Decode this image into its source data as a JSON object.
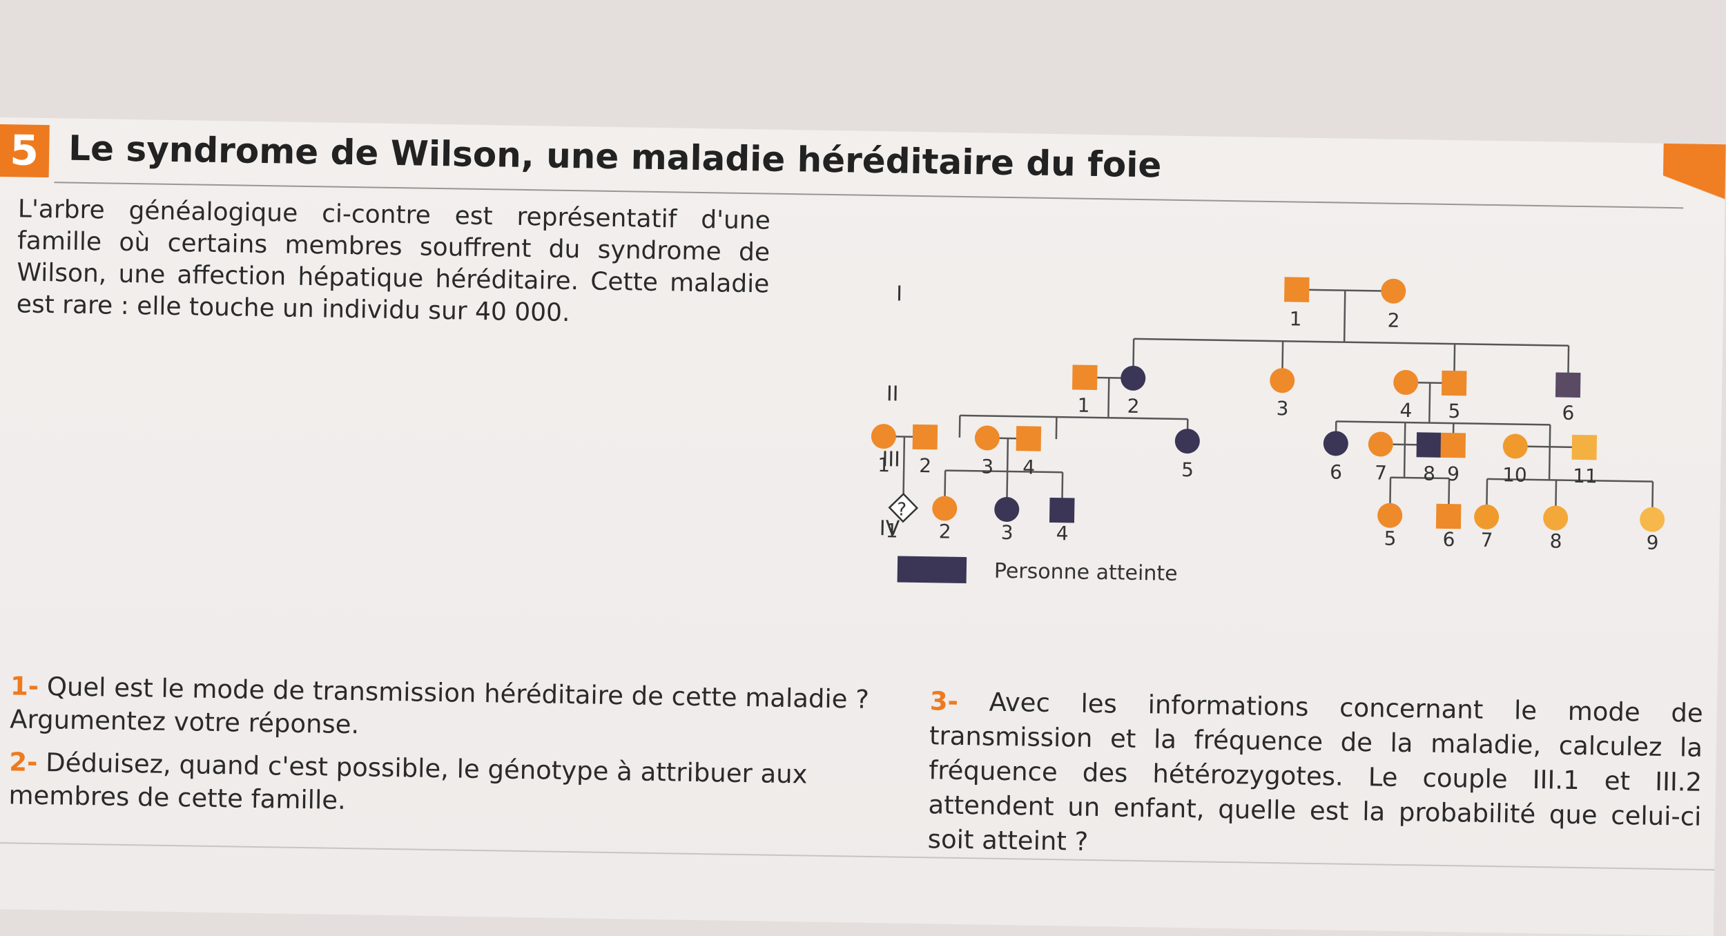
{
  "exercise": {
    "number": "5",
    "title": "Le syndrome de Wilson, une maladie héréditaire du foie",
    "intro": "L'arbre généalogique ci-contre est représentatif d'une famille où certains membres souffrent du syndrome de Wilson, une affection hépatique héréditaire. Cette maladie est rare : elle touche un individu sur 40 000."
  },
  "pedigree": {
    "generations": [
      "I",
      "II",
      "III",
      "IV"
    ],
    "colors": {
      "healthy": "#ee8a2a",
      "affected": "#3b3556",
      "heterozygous_light": "#f4a83a"
    },
    "legend": {
      "label": "Personne atteinte"
    },
    "unknown_symbol": "?",
    "individuals": {
      "I": [
        {
          "n": "1",
          "sex": "M",
          "affected": false
        },
        {
          "n": "2",
          "sex": "F",
          "affected": false
        }
      ],
      "II": [
        {
          "n": "1",
          "sex": "M",
          "affected": false
        },
        {
          "n": "2",
          "sex": "F",
          "affected": true
        },
        {
          "n": "3",
          "sex": "F",
          "affected": false
        },
        {
          "n": "4",
          "sex": "F",
          "affected": false
        },
        {
          "n": "5",
          "sex": "M",
          "affected": false
        },
        {
          "n": "6",
          "sex": "M",
          "affected": true
        }
      ],
      "III": [
        {
          "n": "1",
          "sex": "F",
          "affected": false
        },
        {
          "n": "2",
          "sex": "M",
          "affected": false
        },
        {
          "n": "3",
          "sex": "F",
          "affected": false
        },
        {
          "n": "4",
          "sex": "M",
          "affected": false
        },
        {
          "n": "5",
          "sex": "F",
          "affected": true
        },
        {
          "n": "6",
          "sex": "F",
          "affected": true
        },
        {
          "n": "7",
          "sex": "F",
          "affected": false
        },
        {
          "n": "8",
          "sex": "M",
          "affected": true
        },
        {
          "n": "9",
          "sex": "M",
          "affected": false
        },
        {
          "n": "10",
          "sex": "F",
          "affected": false
        },
        {
          "n": "11",
          "sex": "M",
          "affected": false
        }
      ],
      "IV": [
        {
          "n": "1",
          "sex": "?",
          "affected": null
        },
        {
          "n": "2",
          "sex": "F",
          "affected": false
        },
        {
          "n": "3",
          "sex": "F",
          "affected": true
        },
        {
          "n": "4",
          "sex": "M",
          "affected": true
        },
        {
          "n": "5",
          "sex": "F",
          "affected": false
        },
        {
          "n": "6",
          "sex": "M",
          "affected": false
        },
        {
          "n": "7",
          "sex": "F",
          "affected": false
        },
        {
          "n": "8",
          "sex": "F",
          "affected": false
        },
        {
          "n": "9",
          "sex": "F",
          "affected": false
        }
      ]
    }
  },
  "questions": {
    "q1": {
      "num": "1-",
      "text": " Quel est le mode de transmission héréditaire de cette maladie ? Argumentez votre réponse."
    },
    "q2": {
      "num": "2-",
      "text": " Déduisez, quand c'est possible, le génotype à attribuer aux membres de cette famille."
    },
    "q3": {
      "num": "3-",
      "text": " Avec les informations concernant le mode de transmission et la fréquence de la maladie, calculez la fréquence des hétérozygotes. Le couple III.1 et III.2 attendent un enfant, quelle est la probabilité que celui-ci soit atteint ?"
    }
  }
}
